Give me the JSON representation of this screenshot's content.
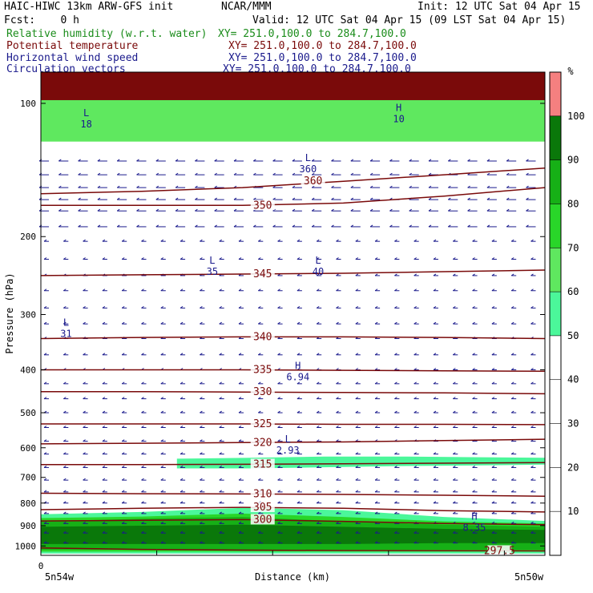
{
  "header": {
    "model": "HAIC-HIWC 13km ARW-GFS init",
    "org": "NCAR/MMM",
    "init": "Init: 12 UTC Sat 04 Apr 15",
    "fcst": "Fcst:    0 h",
    "valid": "Valid: 12 UTC Sat 04 Apr 15 (09 LST Sat 04 Apr 15)"
  },
  "legend": [
    {
      "label": "Relative humidity (w.r.t. water)",
      "xy": "XY= 251.0,100.0 to 284.7,100.0",
      "color": "#1a8c1a"
    },
    {
      "label": "Potential temperature",
      "xy": "XY= 251.0,100.0 to 284.7,100.0",
      "color": "#7a0a0a"
    },
    {
      "label": "Horizontal wind speed",
      "xy": "XY= 251.0,100.0 to 284.7,100.0",
      "color": "#1a1a8c"
    },
    {
      "label": "Circulation vectors",
      "xy": "XY= 251.0,100.0 to 284.7,100.0",
      "color": "#1a1a8c"
    }
  ],
  "chart_data": {
    "type": "heatmap",
    "ylabel": "Pressure (hPa)",
    "xlabel": "Distance (km)",
    "x_start_label": "5n54w",
    "x_end_label": "5n50w",
    "x_zero_label": "0",
    "y_ticks": [
      100,
      200,
      300,
      400,
      500,
      600,
      700,
      800,
      900,
      1000
    ],
    "y_scale": "log",
    "ylim": [
      1050,
      85
    ],
    "x_range": [
      0,
      100
    ],
    "colorbar": {
      "unit": "%",
      "ticks": [
        10,
        20,
        30,
        40,
        50,
        60,
        70,
        80,
        90,
        100
      ],
      "bands": [
        {
          "from": 50,
          "to": 60,
          "color": "#4bf79a"
        },
        {
          "from": 60,
          "to": 70,
          "color": "#5fe85f"
        },
        {
          "from": 70,
          "to": 80,
          "color": "#29d629"
        },
        {
          "from": 80,
          "to": 90,
          "color": "#16b016"
        },
        {
          "from": 90,
          "to": 100,
          "color": "#0a780a"
        },
        {
          "from": 100,
          "to": 110,
          "color": "#f58080"
        }
      ]
    },
    "theta_contours": [
      {
        "label": "360",
        "p": [
          160,
          158,
          155,
          150,
          145,
          140
        ]
      },
      {
        "label": "350",
        "p": [
          170,
          170,
          170,
          168,
          162,
          155
        ]
      },
      {
        "label": "345",
        "p": [
          245,
          244,
          243,
          242,
          240,
          238
        ]
      },
      {
        "label": "340",
        "p": [
          340,
          338,
          337,
          337,
          338,
          340
        ]
      },
      {
        "label": "335",
        "p": [
          400,
          400,
          400,
          401,
          402,
          403
        ]
      },
      {
        "label": "330",
        "p": [
          448,
          448,
          449,
          450,
          451,
          453
        ]
      },
      {
        "label": "325",
        "p": [
          530,
          530,
          530,
          531,
          531,
          532
        ]
      },
      {
        "label": "320",
        "p": [
          588,
          586,
          584,
          582,
          578,
          574
        ]
      },
      {
        "label": "315",
        "p": [
          655,
          655,
          654,
          652,
          650,
          648
        ]
      },
      {
        "label": "310",
        "p": [
          760,
          762,
          763,
          765,
          768,
          772
        ]
      },
      {
        "label": "305",
        "p": [
          828,
          822,
          818,
          822,
          832,
          838
        ]
      },
      {
        "label": "300",
        "p": [
          878,
          875,
          872,
          880,
          890,
          895
        ]
      },
      {
        "label": "297.5",
        "p": [
          1010,
          1018,
          1022,
          1024,
          1025,
          1026
        ]
      }
    ],
    "rh_regions": [
      {
        "level": 50,
        "top": [
          635,
          632,
          628,
          628,
          630,
          632
        ],
        "bottom": [
          668,
          668,
          664,
          660,
          658,
          655
        ],
        "x0": 27,
        "x1": 100
      },
      {
        "level": 50,
        "top": [
          848,
          838,
          820,
          830,
          860,
          878
        ],
        "bottom": [
          1040,
          1040,
          1040,
          1040,
          1040,
          1040
        ],
        "x0": 0,
        "x1": 100
      },
      {
        "level": 70,
        "top": [
          865,
          858,
          845,
          860,
          880,
          890
        ],
        "bottom": [
          1030,
          1030,
          1030,
          1030,
          1030,
          1030
        ],
        "x0": 0,
        "x1": 100
      },
      {
        "level": 80,
        "top": [
          880,
          868,
          860,
          880,
          895,
          905
        ],
        "bottom": [
          1020,
          1020,
          1020,
          1020,
          1020,
          1020
        ],
        "x0": 0,
        "x1": 100
      },
      {
        "level": 90,
        "top": [
          905,
          900,
          895,
          905,
          915,
          920
        ],
        "bottom": [
          990,
          990,
          990,
          990,
          985,
          985
        ],
        "x0": 0,
        "x1": 100
      }
    ],
    "extrema": [
      {
        "kind": "L",
        "value": "35",
        "x": 34,
        "p": 230
      },
      {
        "kind": "L",
        "value": "40",
        "x": 55,
        "p": 230
      },
      {
        "kind": "L",
        "value": "31",
        "x": 5,
        "p": 318
      },
      {
        "kind": "H",
        "value": "6.94",
        "x": 51,
        "p": 398
      },
      {
        "kind": "L",
        "value": "2.93",
        "x": 49,
        "p": 583
      },
      {
        "kind": "H",
        "value": "8.35",
        "x": 86,
        "p": 872
      },
      {
        "kind": "L",
        "value": "18",
        "x": 9,
        "p": 107
      },
      {
        "kind": "H",
        "value": "10",
        "x": 71,
        "p": 104
      },
      {
        "kind": "L",
        "value": "360",
        "x": 53,
        "p": 135
      }
    ],
    "wind": {
      "direction": "easterly",
      "rows_p": [
        135,
        145,
        155,
        165,
        175,
        190,
        205,
        225,
        245,
        265,
        290,
        315,
        340,
        370,
        400,
        430,
        465,
        500,
        540,
        580,
        620,
        665,
        710,
        755,
        800,
        845,
        890,
        935,
        985
      ]
    }
  }
}
